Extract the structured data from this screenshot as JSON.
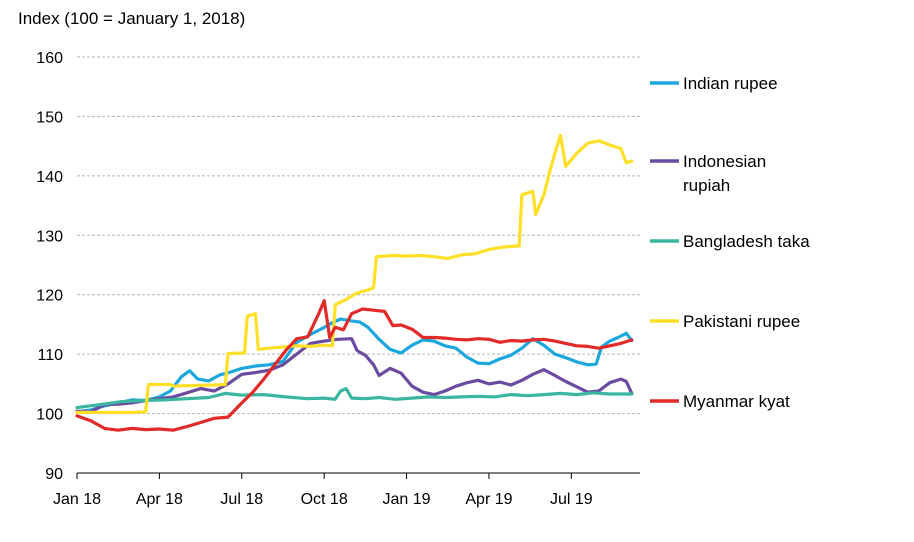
{
  "chart_data": {
    "type": "line",
    "title": "",
    "ylabel": "Index (100 = January 1, 2018)",
    "xlabel": "",
    "ylim": [
      90,
      160
    ],
    "yticks": [
      90,
      100,
      110,
      120,
      130,
      140,
      150,
      160
    ],
    "grid": "horizontal dashed",
    "legend_position": "right",
    "x_ticks": [
      {
        "label": "Jan 18",
        "month": 0
      },
      {
        "label": "Apr 18",
        "month": 3
      },
      {
        "label": "Jul 18",
        "month": 6
      },
      {
        "label": "Oct 18",
        "month": 9
      },
      {
        "label": "Jan 19",
        "month": 12
      },
      {
        "label": "Apr 19",
        "month": 15
      },
      {
        "label": "Jul 19",
        "month": 18
      }
    ],
    "x_range_months": [
      0,
      20.5
    ],
    "series": [
      {
        "name": "Indian rupee",
        "color": "#1ba7dd",
        "points": [
          [
            0,
            100.3
          ],
          [
            0.5,
            100.6
          ],
          [
            1,
            101.3
          ],
          [
            1.5,
            101.8
          ],
          [
            2,
            102.3
          ],
          [
            2.5,
            102.2
          ],
          [
            3,
            102.8
          ],
          [
            3.4,
            103.8
          ],
          [
            3.8,
            106.2
          ],
          [
            4.1,
            107.2
          ],
          [
            4.4,
            105.8
          ],
          [
            4.8,
            105.5
          ],
          [
            5.2,
            106.5
          ],
          [
            5.6,
            107
          ],
          [
            6,
            107.6
          ],
          [
            6.5,
            108
          ],
          [
            7,
            108.2
          ],
          [
            7.5,
            108.8
          ],
          [
            8,
            112
          ],
          [
            8.5,
            113.3
          ],
          [
            9,
            114.5
          ],
          [
            9.3,
            115.3
          ],
          [
            9.6,
            115.9
          ],
          [
            10,
            115.6
          ],
          [
            10.3,
            115.4
          ],
          [
            10.6,
            114.5
          ],
          [
            11,
            112.5
          ],
          [
            11.4,
            110.8
          ],
          [
            11.8,
            110.2
          ],
          [
            12.2,
            111.5
          ],
          [
            12.6,
            112.4
          ],
          [
            13,
            112.2
          ],
          [
            13.4,
            111.4
          ],
          [
            13.8,
            111
          ],
          [
            14.2,
            109.5
          ],
          [
            14.6,
            108.5
          ],
          [
            15,
            108.4
          ],
          [
            15.4,
            109.2
          ],
          [
            15.8,
            109.8
          ],
          [
            16.2,
            111
          ],
          [
            16.6,
            112.6
          ],
          [
            17,
            111.5
          ],
          [
            17.4,
            110
          ],
          [
            17.8,
            109.4
          ],
          [
            18.2,
            108.7
          ],
          [
            18.6,
            108.2
          ],
          [
            18.9,
            108.3
          ],
          [
            19.1,
            111.2
          ],
          [
            19.4,
            112.2
          ],
          [
            19.7,
            112.8
          ],
          [
            20,
            113.5
          ],
          [
            20.2,
            112.3
          ]
        ]
      },
      {
        "name": "Indonesian rupiah",
        "color": "#6a4ba0",
        "points": [
          [
            0,
            100.4
          ],
          [
            0.5,
            100.3
          ],
          [
            1,
            101.5
          ],
          [
            1.5,
            101.6
          ],
          [
            2,
            101.8
          ],
          [
            2.5,
            102.2
          ],
          [
            3,
            102.5
          ],
          [
            3.5,
            102.8
          ],
          [
            4,
            103.5
          ],
          [
            4.5,
            104.2
          ],
          [
            5,
            103.8
          ],
          [
            5.5,
            105
          ],
          [
            6,
            106.6
          ],
          [
            6.5,
            106.9
          ],
          [
            7,
            107.3
          ],
          [
            7.5,
            108.2
          ],
          [
            8,
            110
          ],
          [
            8.5,
            111.8
          ],
          [
            9,
            112.2
          ],
          [
            9.5,
            112.5
          ],
          [
            10,
            112.6
          ],
          [
            10.2,
            110.6
          ],
          [
            10.5,
            109.8
          ],
          [
            10.8,
            108.2
          ],
          [
            11,
            106.4
          ],
          [
            11.4,
            107.6
          ],
          [
            11.8,
            106.8
          ],
          [
            12.2,
            104.6
          ],
          [
            12.6,
            103.6
          ],
          [
            13,
            103.2
          ],
          [
            13.4,
            103.8
          ],
          [
            13.8,
            104.6
          ],
          [
            14.2,
            105.2
          ],
          [
            14.6,
            105.6
          ],
          [
            15,
            105
          ],
          [
            15.4,
            105.3
          ],
          [
            15.8,
            104.8
          ],
          [
            16.2,
            105.6
          ],
          [
            16.6,
            106.6
          ],
          [
            17,
            107.4
          ],
          [
            17.4,
            106.4
          ],
          [
            17.8,
            105.4
          ],
          [
            18.2,
            104.5
          ],
          [
            18.6,
            103.6
          ],
          [
            19,
            103.8
          ],
          [
            19.4,
            105.2
          ],
          [
            19.8,
            105.8
          ],
          [
            20,
            105.4
          ],
          [
            20.2,
            103.4
          ]
        ]
      },
      {
        "name": "Bangladesh taka",
        "color": "#3bb6a0",
        "points": [
          [
            0,
            101
          ],
          [
            0.8,
            101.5
          ],
          [
            1.6,
            102
          ],
          [
            2.4,
            102.2
          ],
          [
            3.2,
            102.3
          ],
          [
            4,
            102.5
          ],
          [
            4.8,
            102.7
          ],
          [
            5.4,
            103.4
          ],
          [
            6,
            103.1
          ],
          [
            6.8,
            103.2
          ],
          [
            7.6,
            102.8
          ],
          [
            8.4,
            102.5
          ],
          [
            9,
            102.6
          ],
          [
            9.4,
            102.4
          ],
          [
            9.6,
            103.8
          ],
          [
            9.8,
            104.2
          ],
          [
            10,
            102.6
          ],
          [
            10.5,
            102.5
          ],
          [
            11,
            102.7
          ],
          [
            11.6,
            102.4
          ],
          [
            12.2,
            102.6
          ],
          [
            12.8,
            102.8
          ],
          [
            13.4,
            102.7
          ],
          [
            14,
            102.8
          ],
          [
            14.6,
            102.9
          ],
          [
            15.2,
            102.8
          ],
          [
            15.8,
            103.2
          ],
          [
            16.4,
            103
          ],
          [
            17,
            103.2
          ],
          [
            17.6,
            103.4
          ],
          [
            18.2,
            103.2
          ],
          [
            18.8,
            103.5
          ],
          [
            19.4,
            103.3
          ],
          [
            20.2,
            103.3
          ]
        ]
      },
      {
        "name": "Pakistani rupee",
        "color": "#ffdf27",
        "points": [
          [
            0,
            100.2
          ],
          [
            1,
            100.2
          ],
          [
            2,
            100.2
          ],
          [
            2.5,
            100.3
          ],
          [
            2.6,
            104.9
          ],
          [
            3.4,
            104.9
          ],
          [
            3.5,
            104.6
          ],
          [
            4,
            104.7
          ],
          [
            5,
            104.8
          ],
          [
            5.4,
            104.9
          ],
          [
            5.5,
            110.1
          ],
          [
            6.1,
            110.2
          ],
          [
            6.2,
            116.4
          ],
          [
            6.5,
            116.8
          ],
          [
            6.6,
            110.8
          ],
          [
            7,
            111
          ],
          [
            7.5,
            111.2
          ],
          [
            8,
            111.4
          ],
          [
            8.5,
            111.3
          ],
          [
            9,
            111.5
          ],
          [
            9.3,
            111.4
          ],
          [
            9.4,
            118.3
          ],
          [
            9.8,
            119.2
          ],
          [
            10.2,
            120.3
          ],
          [
            10.6,
            120.8
          ],
          [
            10.8,
            121.2
          ],
          [
            10.9,
            126.4
          ],
          [
            11.5,
            126.6
          ],
          [
            12,
            126.5
          ],
          [
            12.5,
            126.6
          ],
          [
            13,
            126.4
          ],
          [
            13.5,
            126.1
          ],
          [
            14,
            126.7
          ],
          [
            14.5,
            126.9
          ],
          [
            15,
            127.6
          ],
          [
            15.5,
            128
          ],
          [
            16,
            128.2
          ],
          [
            16.1,
            128.2
          ],
          [
            16.2,
            136.8
          ],
          [
            16.6,
            137.4
          ],
          [
            16.7,
            133.5
          ],
          [
            17,
            136.8
          ],
          [
            17.2,
            140.5
          ],
          [
            17.4,
            143.8
          ],
          [
            17.6,
            146.8
          ],
          [
            17.8,
            141.6
          ],
          [
            18.2,
            143.8
          ],
          [
            18.6,
            145.5
          ],
          [
            19,
            145.9
          ],
          [
            19.4,
            145.2
          ],
          [
            19.8,
            144.6
          ],
          [
            20,
            142.2
          ],
          [
            20.2,
            142.5
          ]
        ]
      },
      {
        "name": "Myanmar kyat",
        "color": "#e22a28",
        "points": [
          [
            0,
            99.6
          ],
          [
            0.5,
            98.8
          ],
          [
            1,
            97.5
          ],
          [
            1.5,
            97.2
          ],
          [
            2,
            97.5
          ],
          [
            2.5,
            97.3
          ],
          [
            3,
            97.4
          ],
          [
            3.5,
            97.2
          ],
          [
            4,
            97.8
          ],
          [
            4.5,
            98.5
          ],
          [
            5,
            99.2
          ],
          [
            5.5,
            99.4
          ],
          [
            6,
            101.8
          ],
          [
            6.4,
            103.6
          ],
          [
            6.8,
            105.8
          ],
          [
            7.2,
            108.2
          ],
          [
            7.6,
            110.6
          ],
          [
            8,
            112.6
          ],
          [
            8.4,
            112.9
          ],
          [
            8.8,
            116.8
          ],
          [
            9,
            119
          ],
          [
            9.2,
            112.8
          ],
          [
            9.4,
            114.5
          ],
          [
            9.7,
            114.1
          ],
          [
            10,
            116.8
          ],
          [
            10.4,
            117.6
          ],
          [
            10.8,
            117.4
          ],
          [
            11.2,
            117.2
          ],
          [
            11.5,
            114.8
          ],
          [
            11.8,
            114.9
          ],
          [
            12.2,
            114.2
          ],
          [
            12.6,
            112.8
          ],
          [
            13,
            112.8
          ],
          [
            13.4,
            112.7
          ],
          [
            13.8,
            112.5
          ],
          [
            14.2,
            112.4
          ],
          [
            14.6,
            112.6
          ],
          [
            15,
            112.5
          ],
          [
            15.4,
            112
          ],
          [
            15.8,
            112.3
          ],
          [
            16.2,
            112.2
          ],
          [
            16.6,
            112.4
          ],
          [
            17,
            112.5
          ],
          [
            17.4,
            112.2
          ],
          [
            17.8,
            111.8
          ],
          [
            18.2,
            111.4
          ],
          [
            18.6,
            111.3
          ],
          [
            19,
            111
          ],
          [
            19.4,
            111.4
          ],
          [
            19.8,
            111.8
          ],
          [
            20.2,
            112.4
          ]
        ]
      }
    ]
  }
}
